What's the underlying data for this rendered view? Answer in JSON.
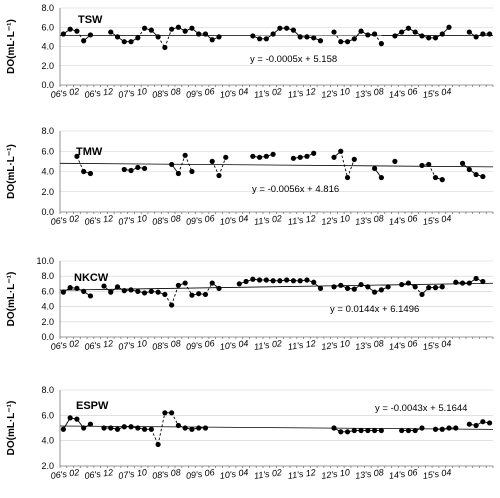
{
  "chart_data": [
    {
      "type": "line",
      "title": "TSW",
      "ylabel": "DO(mL·L⁻¹)",
      "yticks": [
        "0.0",
        "2.0",
        "4.0",
        "6.0",
        "8.0"
      ],
      "ylim": [
        0,
        8
      ],
      "xticks": [
        "06's 02",
        "06's 12",
        "07's 10",
        "08's 08",
        "09's 06",
        "10's 04",
        "11's 02",
        "11's 12",
        "12's 10",
        "13's 08",
        "14's 06",
        "15's 04"
      ],
      "trend_label": "y = -0.0005x + 5.158",
      "trend": {
        "slope": -0.0005,
        "intercept": 5.158
      },
      "grid": true,
      "segments": [
        {
          "x0": 0,
          "values": [
            5.3,
            5.8,
            5.6,
            4.6,
            5.2
          ]
        },
        {
          "x0": 7,
          "values": [
            5.5,
            5.0,
            4.5,
            4.5,
            4.9,
            5.9,
            5.7,
            5.0,
            3.9,
            5.8,
            6.0,
            5.6,
            5.9,
            5.3,
            5.3,
            4.7,
            5.0
          ]
        },
        {
          "x0": 28,
          "values": [
            5.1,
            4.8,
            4.8,
            5.3,
            5.9,
            5.9,
            5.7,
            5.0,
            5.0,
            4.9,
            4.6
          ]
        },
        {
          "x0": 40,
          "values": [
            5.5,
            4.5,
            4.5,
            4.8,
            5.6,
            5.2,
            5.3,
            4.3
          ]
        },
        {
          "x0": 49,
          "values": [
            5.1,
            5.5,
            5.9,
            5.5,
            5.1,
            4.9,
            4.9,
            5.3,
            6.0
          ]
        },
        {
          "x0": 60,
          "values": [
            5.5,
            5.0,
            5.3,
            5.3
          ]
        }
      ]
    },
    {
      "type": "line",
      "title": "TMW",
      "ylabel": "DO(mL·L⁻¹)",
      "yticks": [
        "0.0",
        "2.0",
        "4.0",
        "6.0",
        "8.0"
      ],
      "ylim": [
        0,
        8
      ],
      "xticks": [
        "06's 02",
        "06's 12",
        "07's 10",
        "08's 08",
        "09's 06",
        "10's 04",
        "11's 02",
        "11's 12",
        "12's 10",
        "13's 08",
        "14's 06",
        "15's 04"
      ],
      "trend_label": "y = -0.0056x + 4.816",
      "trend": {
        "slope": -0.0056,
        "intercept": 4.816
      },
      "grid": true,
      "segments": [
        {
          "x0": 2,
          "values": [
            5.5,
            4.0,
            3.8
          ]
        },
        {
          "x0": 9,
          "values": [
            4.2,
            4.1,
            4.4,
            4.3
          ]
        },
        {
          "x0": 16,
          "values": [
            4.7,
            3.8,
            5.6,
            4.0
          ]
        },
        {
          "x0": 22,
          "values": [
            5.0,
            3.6,
            5.4
          ]
        },
        {
          "x0": 28,
          "values": [
            5.5,
            5.4,
            5.5,
            5.7
          ]
        },
        {
          "x0": 34,
          "values": [
            5.3,
            5.4,
            5.5,
            5.8
          ]
        },
        {
          "x0": 40,
          "values": [
            5.4,
            6.0,
            3.4,
            5.2
          ]
        },
        {
          "x0": 46,
          "values": [
            4.3,
            3.4
          ]
        },
        {
          "x0": 49,
          "values": [
            5.0
          ]
        },
        {
          "x0": 53,
          "values": [
            4.6,
            4.7,
            3.4,
            3.2
          ]
        },
        {
          "x0": 59,
          "values": [
            4.8,
            4.2,
            3.7,
            3.5
          ]
        }
      ]
    },
    {
      "type": "line",
      "title": "NKCW",
      "ylabel": "DO(mL·L⁻¹)",
      "yticks": [
        "0.0",
        "2.0",
        "4.0",
        "6.0",
        "8.0",
        "10.0"
      ],
      "ylim": [
        0,
        10
      ],
      "xticks": [
        "06's 02",
        "06's 12",
        "07's 10",
        "08's 08",
        "09's 06",
        "10's 04",
        "11's 02",
        "11's 12",
        "12's 10",
        "13's 08",
        "14's 06",
        "15's 04"
      ],
      "trend_label": "y = 0.0144x + 6.1496",
      "trend": {
        "slope": 0.0144,
        "intercept": 6.1496
      },
      "grid": true,
      "segments": [
        {
          "x0": 0,
          "values": [
            5.9,
            6.5,
            6.4,
            6.0,
            5.4
          ]
        },
        {
          "x0": 6,
          "values": [
            6.7,
            5.9,
            6.6,
            6.1,
            6.2,
            6.0,
            5.8,
            6.0,
            5.9,
            5.6,
            4.2,
            6.8,
            7.1,
            5.5,
            5.7,
            5.6,
            7.1,
            6.4
          ]
        },
        {
          "x0": 26,
          "values": [
            7.0,
            7.3,
            7.6,
            7.5,
            7.5,
            7.4,
            7.4,
            7.5,
            7.4,
            7.4,
            7.5,
            7.2,
            6.4
          ]
        },
        {
          "x0": 40,
          "values": [
            6.6,
            6.8,
            6.4,
            6.3,
            6.9,
            6.6,
            5.9,
            6.2,
            6.6
          ]
        },
        {
          "x0": 50,
          "values": [
            6.9,
            7.1,
            6.6,
            5.6,
            6.5,
            6.5,
            6.6
          ]
        },
        {
          "x0": 58,
          "values": [
            7.2,
            7.1,
            7.1,
            7.7,
            7.3
          ]
        }
      ]
    },
    {
      "type": "line",
      "title": "ESPW",
      "ylabel": "DO(mL·L⁻¹)",
      "yticks": [
        "2.0",
        "4.0",
        "6.0",
        "8.0"
      ],
      "ylim": [
        2,
        8
      ],
      "xticks": [
        "06's 02",
        "06's 12",
        "07's 10",
        "08's 08",
        "09's 06",
        "10's 04",
        "11's 02",
        "11's 12",
        "12's 10",
        "13's 08",
        "14's 06",
        "15's 04"
      ],
      "trend_label": "y = -0.0043x + 5.1644",
      "trend": {
        "slope": -0.0043,
        "intercept": 5.1644
      },
      "grid": true,
      "segments": [
        {
          "x0": 0,
          "values": [
            4.9,
            5.8,
            5.7,
            5.0,
            5.3
          ]
        },
        {
          "x0": 6,
          "values": [
            5.0,
            5.0,
            4.9,
            5.1,
            5.1,
            5.0,
            4.9,
            4.9,
            3.7,
            6.2,
            6.2,
            5.2,
            5.0,
            4.9,
            5.0,
            5.0
          ]
        },
        {
          "x0": 40,
          "values": [
            5.0,
            4.7,
            4.7,
            4.8,
            4.8,
            4.8,
            4.8,
            4.8
          ]
        },
        {
          "x0": 50,
          "values": [
            4.8,
            4.8,
            4.8,
            5.0
          ]
        },
        {
          "x0": 55,
          "values": [
            4.9,
            4.9,
            5.0,
            5.0
          ]
        },
        {
          "x0": 60,
          "values": [
            5.3,
            5.2,
            5.5,
            5.4
          ]
        }
      ]
    }
  ]
}
